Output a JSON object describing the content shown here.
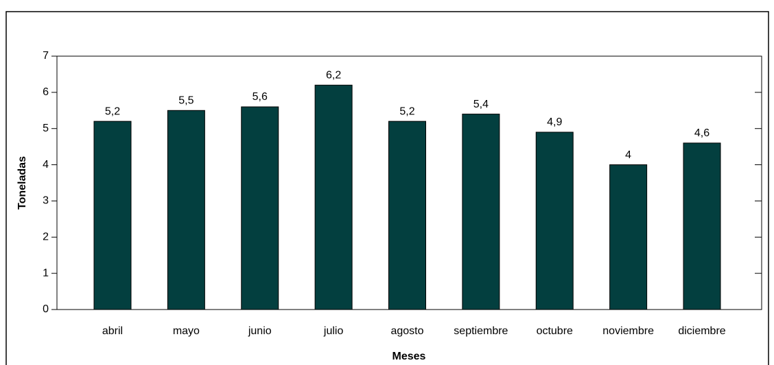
{
  "chart_data": {
    "type": "bar",
    "x_label": "Meses",
    "y_label": "Toneladas",
    "categories": [
      "abril",
      "mayo",
      "junio",
      "julio",
      "agosto",
      "septiembre",
      "octubre",
      "noviembre",
      "diciembre"
    ],
    "values": [
      5.2,
      5.5,
      5.6,
      6.2,
      5.2,
      5.4,
      4.9,
      4,
      4.6
    ],
    "value_labels": [
      "5,2",
      "5,5",
      "5,6",
      "6,2",
      "5,2",
      "5,4",
      "4,9",
      "4",
      "4,6"
    ],
    "color": "#033f3f",
    "ylim": [
      0,
      7
    ],
    "yticks": [
      0,
      1,
      2,
      3,
      4,
      5,
      6,
      7
    ]
  }
}
